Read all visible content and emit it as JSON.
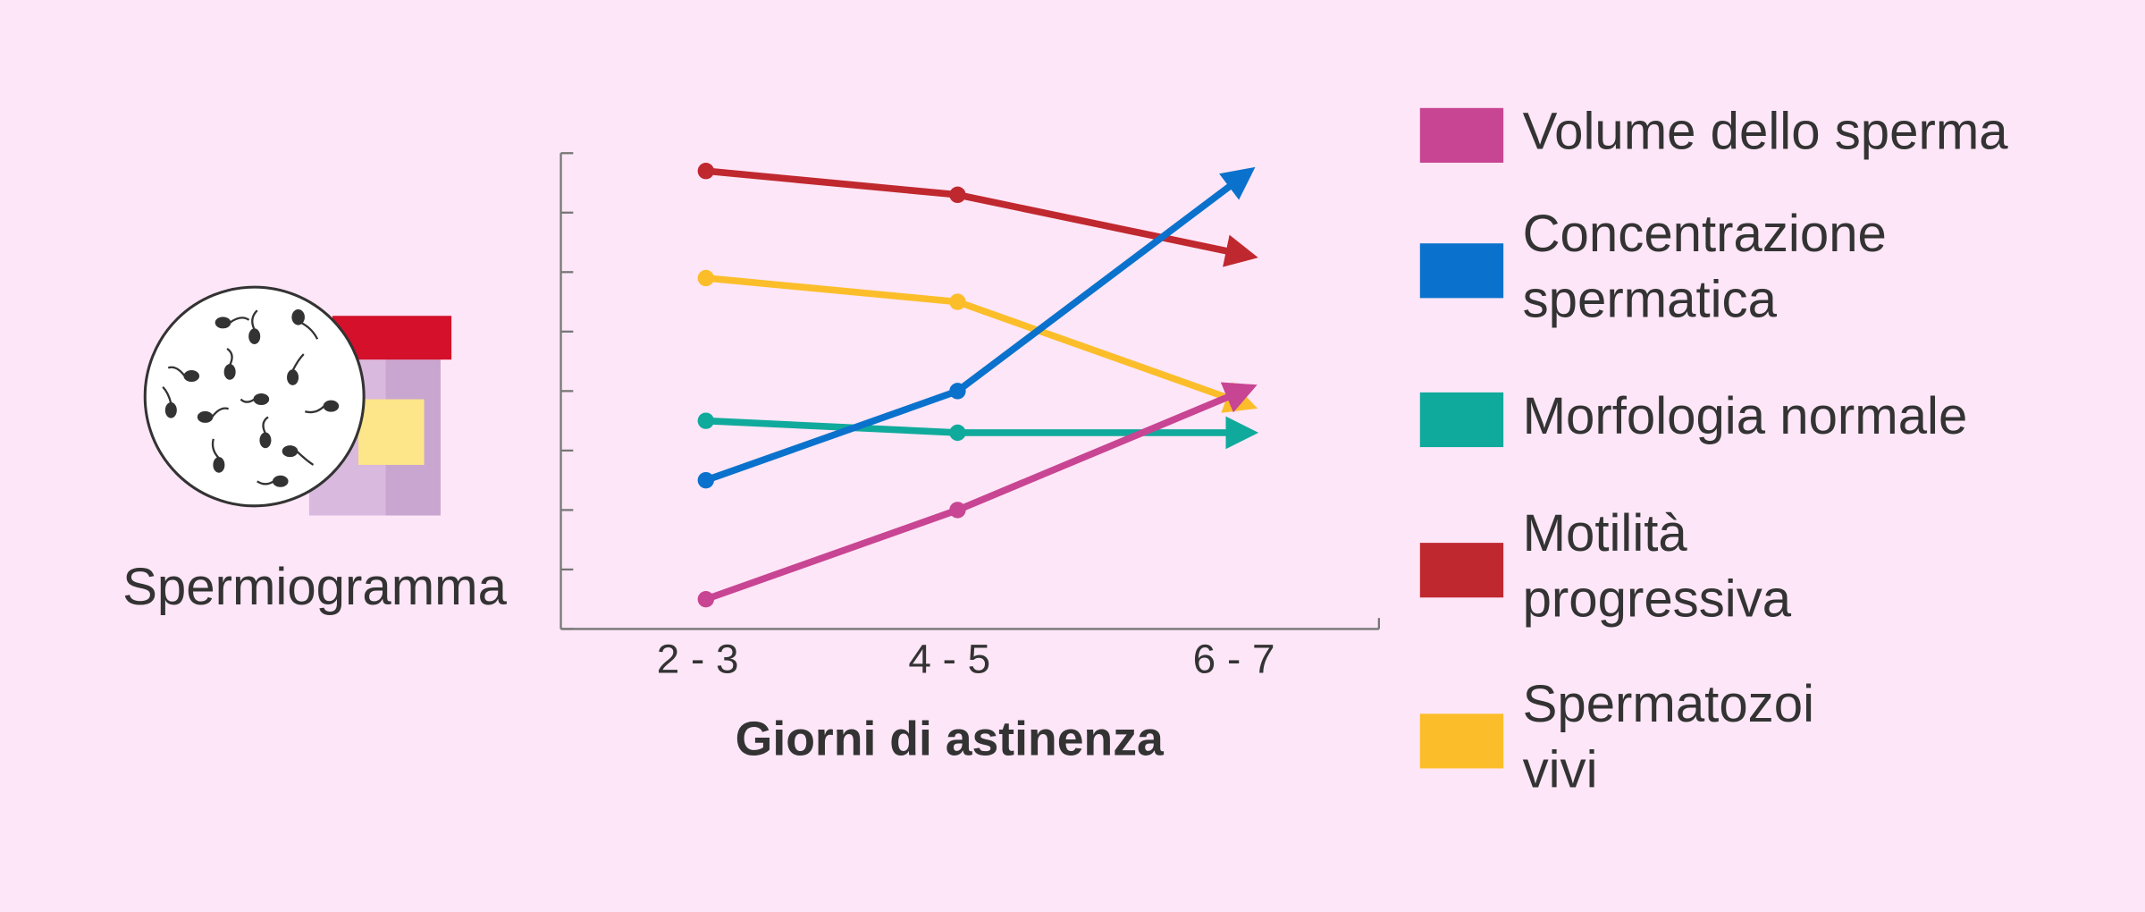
{
  "chart_data": {
    "type": "line",
    "icon_label": "Spermiogramma",
    "x_label": "Giorni di astinenza",
    "categories": [
      "2 - 3",
      "4 - 5",
      "6 - 7"
    ],
    "ylim": [
      0,
      8
    ],
    "yticks": [
      0,
      1,
      2,
      3,
      4,
      5,
      6,
      7,
      8
    ],
    "series": [
      {
        "name": "Volume dello sperma",
        "color": "#c84593",
        "values": [
          0.5,
          2.0,
          4.0
        ]
      },
      {
        "name": "Concentrazione\nspermatica",
        "color": "#0a72cc",
        "values": [
          2.5,
          4.0,
          7.6
        ]
      },
      {
        "name": "Morfologia normale",
        "color": "#10aa9c",
        "values": [
          3.5,
          3.3,
          3.3
        ]
      },
      {
        "name": "Motilità\nprogressiva",
        "color": "#c0282f",
        "values": [
          7.7,
          7.3,
          6.3
        ]
      },
      {
        "name": "Spermatozoi\nvivi",
        "color": "#fbbe2a",
        "values": [
          5.9,
          5.5,
          3.8
        ]
      }
    ]
  }
}
